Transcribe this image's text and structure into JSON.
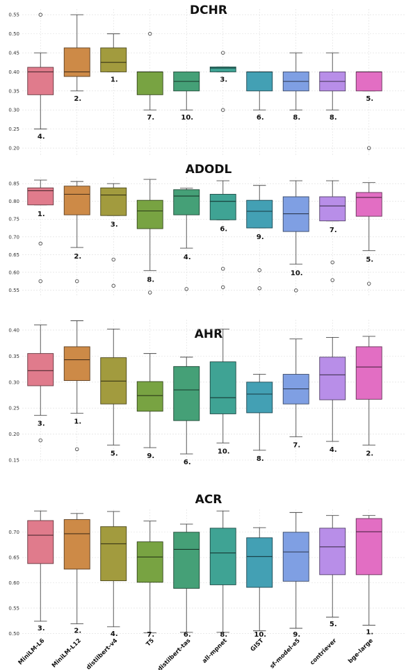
{
  "figure": {
    "categories": [
      "MiniLM-L6",
      "MiniLM-L12",
      "distilbert-v4",
      "T5",
      "distilbert-tas",
      "all-mpnet",
      "GIST",
      "sf-model-e5",
      "contriever",
      "bge-large"
    ],
    "colors": [
      "#e07b8c",
      "#cd8a47",
      "#a29b3e",
      "#78a342",
      "#45a077",
      "#3fa394",
      "#43a0b4",
      "#7f9fe3",
      "#b88ee8",
      "#e26ec3"
    ]
  },
  "chart_data": [
    {
      "type": "box",
      "title": "DCHR",
      "ylim": [
        0.18,
        0.565
      ],
      "yticks": [
        0.2,
        0.25,
        0.3,
        0.35,
        0.4,
        0.45,
        0.5,
        0.55
      ],
      "ytick_labels": [
        "0.20",
        "0.25",
        "0.30",
        "0.35",
        "0.40",
        "0.45",
        "0.50",
        "0.55"
      ],
      "boxes": [
        {
          "min": 0.25,
          "q1": 0.34,
          "median": 0.4,
          "q3": 0.412,
          "max": 0.45,
          "outliers": [
            0.55
          ],
          "rank": "4."
        },
        {
          "min": 0.35,
          "q1": 0.388,
          "median": 0.4,
          "q3": 0.463,
          "max": 0.55,
          "outliers": [],
          "rank": "2."
        },
        {
          "min": 0.4,
          "q1": 0.4,
          "median": 0.425,
          "q3": 0.463,
          "max": 0.5,
          "outliers": [],
          "rank": "1."
        },
        {
          "min": 0.3,
          "q1": 0.34,
          "median": 0.4,
          "q3": 0.4,
          "max": 0.4,
          "outliers": [
            0.5
          ],
          "rank": "7."
        },
        {
          "min": 0.3,
          "q1": 0.35,
          "median": 0.375,
          "q3": 0.4,
          "max": 0.4,
          "outliers": [],
          "rank": "10."
        },
        {
          "min": 0.4,
          "q1": 0.4,
          "median": 0.41,
          "q3": 0.413,
          "max": 0.413,
          "outliers": [
            0.3,
            0.45
          ],
          "rank": "3."
        },
        {
          "min": 0.3,
          "q1": 0.35,
          "median": 0.4,
          "q3": 0.4,
          "max": 0.4,
          "outliers": [],
          "rank": "6."
        },
        {
          "min": 0.3,
          "q1": 0.35,
          "median": 0.375,
          "q3": 0.4,
          "max": 0.45,
          "outliers": [],
          "rank": "8."
        },
        {
          "min": 0.3,
          "q1": 0.35,
          "median": 0.375,
          "q3": 0.4,
          "max": 0.45,
          "outliers": [],
          "rank": "8."
        },
        {
          "min": 0.35,
          "q1": 0.35,
          "median": 0.4,
          "q3": 0.4,
          "max": 0.4,
          "outliers": [
            0.2
          ],
          "rank": "5."
        }
      ]
    },
    {
      "type": "box",
      "title": "ADODL",
      "ylim": [
        0.535,
        0.868
      ],
      "yticks": [
        0.55,
        0.6,
        0.65,
        0.7,
        0.75,
        0.8,
        0.85
      ],
      "ytick_labels": [
        "0.55",
        "0.60",
        "0.65",
        "0.70",
        "0.75",
        "0.80",
        "0.85"
      ],
      "boxes": [
        {
          "min": 0.79,
          "q1": 0.79,
          "median": 0.83,
          "q3": 0.838,
          "max": 0.86,
          "outliers": [
            0.681,
            0.575
          ],
          "rank": "1."
        },
        {
          "min": 0.67,
          "q1": 0.762,
          "median": 0.82,
          "q3": 0.843,
          "max": 0.856,
          "outliers": [
            0.575
          ],
          "rank": "2."
        },
        {
          "min": 0.76,
          "q1": 0.76,
          "median": 0.818,
          "q3": 0.838,
          "max": 0.85,
          "outliers": [
            0.636,
            0.562
          ],
          "rank": "3."
        },
        {
          "min": 0.605,
          "q1": 0.723,
          "median": 0.773,
          "q3": 0.803,
          "max": 0.862,
          "outliers": [
            0.543
          ],
          "rank": "8."
        },
        {
          "min": 0.668,
          "q1": 0.762,
          "median": 0.815,
          "q3": 0.833,
          "max": 0.837,
          "outliers": [
            0.553
          ],
          "rank": "4."
        },
        {
          "min": 0.748,
          "q1": 0.748,
          "median": 0.8,
          "q3": 0.82,
          "max": 0.858,
          "outliers": [
            0.61,
            0.558
          ],
          "rank": "6."
        },
        {
          "min": 0.725,
          "q1": 0.725,
          "median": 0.772,
          "q3": 0.803,
          "max": 0.845,
          "outliers": [
            0.606,
            0.555
          ],
          "rank": "9."
        },
        {
          "min": 0.623,
          "q1": 0.715,
          "median": 0.765,
          "q3": 0.813,
          "max": 0.858,
          "outliers": [
            0.549
          ],
          "rank": "10."
        },
        {
          "min": 0.745,
          "q1": 0.745,
          "median": 0.787,
          "q3": 0.813,
          "max": 0.858,
          "outliers": [
            0.628,
            0.578
          ],
          "rank": "7."
        },
        {
          "min": 0.661,
          "q1": 0.758,
          "median": 0.811,
          "q3": 0.825,
          "max": 0.853,
          "outliers": [
            0.568
          ],
          "rank": "5."
        }
      ]
    },
    {
      "type": "box",
      "title": "AHR",
      "ylim": [
        0.146,
        0.42
      ],
      "yticks": [
        0.15,
        0.2,
        0.25,
        0.3,
        0.35,
        0.4
      ],
      "ytick_labels": [
        "0.15",
        "0.20",
        "0.25",
        "0.30",
        "0.35",
        "0.40"
      ],
      "boxes": [
        {
          "min": 0.236,
          "q1": 0.293,
          "median": 0.322,
          "q3": 0.355,
          "max": 0.41,
          "outliers": [
            0.188
          ],
          "rank": "3."
        },
        {
          "min": 0.24,
          "q1": 0.303,
          "median": 0.343,
          "q3": 0.368,
          "max": 0.418,
          "outliers": [
            0.171
          ],
          "rank": "1."
        },
        {
          "min": 0.179,
          "q1": 0.258,
          "median": 0.302,
          "q3": 0.347,
          "max": 0.402,
          "outliers": [],
          "rank": "5."
        },
        {
          "min": 0.174,
          "q1": 0.244,
          "median": 0.274,
          "q3": 0.301,
          "max": 0.355,
          "outliers": [],
          "rank": "9."
        },
        {
          "min": 0.162,
          "q1": 0.226,
          "median": 0.285,
          "q3": 0.33,
          "max": 0.348,
          "outliers": [],
          "rank": "6."
        },
        {
          "min": 0.183,
          "q1": 0.239,
          "median": 0.27,
          "q3": 0.339,
          "max": 0.402,
          "outliers": [],
          "rank": "10."
        },
        {
          "min": 0.169,
          "q1": 0.241,
          "median": 0.277,
          "q3": 0.3,
          "max": 0.315,
          "outliers": [],
          "rank": "8."
        },
        {
          "min": 0.195,
          "q1": 0.258,
          "median": 0.287,
          "q3": 0.315,
          "max": 0.383,
          "outliers": [],
          "rank": "7."
        },
        {
          "min": 0.186,
          "q1": 0.266,
          "median": 0.314,
          "q3": 0.348,
          "max": 0.386,
          "outliers": [],
          "rank": "4."
        },
        {
          "min": 0.179,
          "q1": 0.267,
          "median": 0.329,
          "q3": 0.368,
          "max": 0.388,
          "outliers": [],
          "rank": "2."
        }
      ]
    },
    {
      "type": "box",
      "title": "ACR",
      "ylim": [
        0.499,
        0.745
      ],
      "yticks": [
        0.5,
        0.55,
        0.6,
        0.65,
        0.7
      ],
      "ytick_labels": [
        "0.50",
        "0.55",
        "0.60",
        "0.65",
        "0.70"
      ],
      "boxes": [
        {
          "min": 0.524,
          "q1": 0.638,
          "median": 0.694,
          "q3": 0.723,
          "max": 0.742,
          "outliers": [],
          "rank": "3."
        },
        {
          "min": 0.519,
          "q1": 0.627,
          "median": 0.697,
          "q3": 0.725,
          "max": 0.737,
          "outliers": [],
          "rank": "2."
        },
        {
          "min": 0.513,
          "q1": 0.604,
          "median": 0.677,
          "q3": 0.711,
          "max": 0.741,
          "outliers": [],
          "rank": "4."
        },
        {
          "min": 0.501,
          "q1": 0.601,
          "median": 0.651,
          "q3": 0.681,
          "max": 0.722,
          "outliers": [],
          "rank": "7."
        },
        {
          "min": 0.502,
          "q1": 0.589,
          "median": 0.666,
          "q3": 0.7,
          "max": 0.716,
          "outliers": [],
          "rank": "6."
        },
        {
          "min": 0.502,
          "q1": 0.596,
          "median": 0.659,
          "q3": 0.708,
          "max": 0.742,
          "outliers": [],
          "rank": "8."
        },
        {
          "min": 0.505,
          "q1": 0.591,
          "median": 0.652,
          "q3": 0.689,
          "max": 0.709,
          "outliers": [],
          "rank": "10."
        },
        {
          "min": 0.51,
          "q1": 0.603,
          "median": 0.661,
          "q3": 0.7,
          "max": 0.739,
          "outliers": [],
          "rank": "9."
        },
        {
          "min": 0.532,
          "q1": 0.616,
          "median": 0.671,
          "q3": 0.708,
          "max": 0.733,
          "outliers": [],
          "rank": "5."
        },
        {
          "min": 0.516,
          "q1": 0.616,
          "median": 0.701,
          "q3": 0.727,
          "max": 0.733,
          "outliers": [],
          "rank": "1."
        }
      ]
    }
  ]
}
